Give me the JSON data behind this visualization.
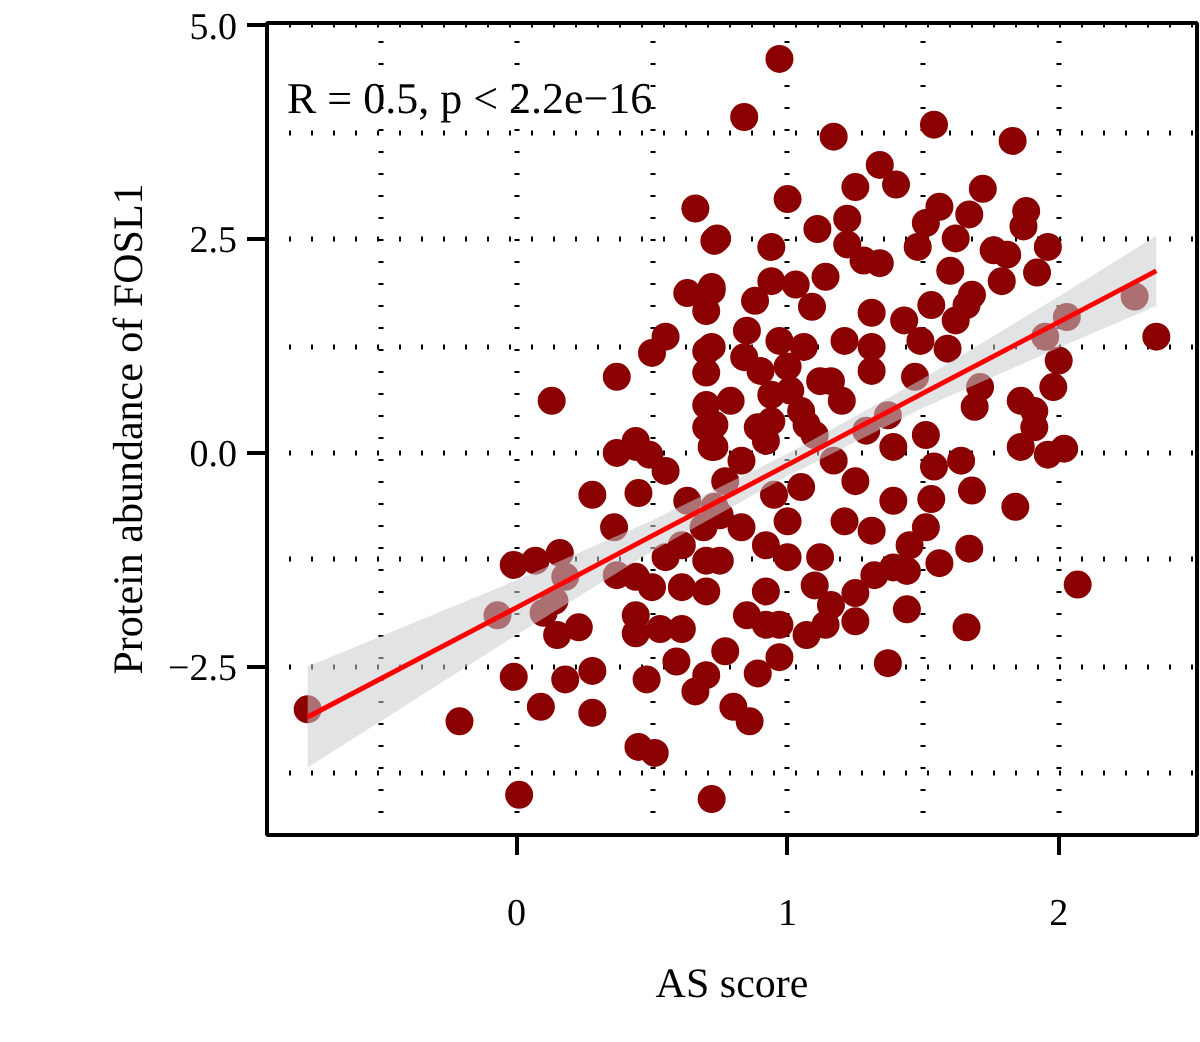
{
  "chart_data": {
    "type": "scatter",
    "xlabel": "AS score",
    "ylabel": "Protein abundance of FOSL1",
    "annotations": [
      "R = 0.5, p < 2.2e−16"
    ],
    "xlim": [
      -0.92,
      2.51
    ],
    "ylim": [
      -4.47,
      5.03
    ],
    "xticks": [
      {
        "value": -0.5,
        "label": null
      },
      0,
      {
        "value": 0.5,
        "label": null
      },
      1,
      {
        "value": 1.5,
        "label": null
      },
      2
    ],
    "yticks": [
      {
        "value": -3.75,
        "label": null
      },
      {
        "value": -2.5,
        "label": "−2.5"
      },
      {
        "value": -1.25,
        "label": null
      },
      {
        "value": 0,
        "label": "0.0"
      },
      {
        "value": 1.25,
        "label": null
      },
      {
        "value": 2.5,
        "label": "2.5"
      },
      {
        "value": 3.75,
        "label": null
      },
      {
        "value": 5,
        "label": "5.0"
      }
    ],
    "grid": true,
    "marker": "circle",
    "line_style": "dotted",
    "series": [
      {
        "color": "#8b0000",
        "x": [
          0.97,
          0.84,
          1.17,
          1.54,
          1.83,
          1.34,
          1.25,
          1.4,
          1.0,
          1.72,
          1.56,
          1.51,
          1.67,
          1.88,
          1.87,
          1.11,
          1.22,
          0.74,
          0.94,
          1.22,
          1.48,
          1.62,
          1.76,
          1.81,
          1.96,
          1.28,
          1.34,
          1.14,
          0.94,
          1.03,
          1.6,
          1.68,
          1.79,
          1.92,
          2.28,
          2.36,
          2.03,
          0.72,
          0.88,
          1.09,
          1.31,
          1.53,
          1.66,
          1.62,
          0.85,
          0.72,
          0.97,
          1.06,
          1.21,
          1.31,
          1.43,
          1.49,
          1.59,
          1.95,
          2.0,
          1.0,
          1.16,
          1.31,
          1.47,
          1.71,
          1.98,
          0.94,
          1.69,
          1.86,
          1.91,
          0.73,
          0.89,
          1.07,
          1.37,
          0.66,
          0.73,
          0.63,
          0.72,
          0.7,
          0.55,
          0.5,
          0.7,
          0.37,
          0.7,
          0.13,
          0.7,
          0.44,
          0.7,
          -0.77,
          -0.21,
          0.01,
          -0.01,
          0.07,
          0.16,
          0.18,
          -0.07,
          0.1,
          0.14,
          0.15,
          0.23,
          -0.01,
          0.09,
          0.18,
          0.28,
          0.28,
          0.28,
          0.36,
          0.37,
          0.44,
          0.49,
          0.55,
          0.45,
          0.63,
          0.37,
          0.44,
          0.5,
          0.44,
          0.44,
          0.53,
          0.61,
          0.48,
          0.59,
          0.66,
          0.45,
          0.51,
          0.72,
          0.55,
          0.61,
          0.61,
          0.7,
          0.7,
          0.69,
          0.73,
          0.73,
          0.7,
          2.07,
          1.66,
          1.37,
          1.84,
          1.68,
          1.67,
          1.53,
          1.56,
          1.51,
          1.44,
          1.25,
          1.25,
          1.14,
          1.07,
          0.97,
          0.89,
          0.8,
          0.86,
          0.77,
          0.92,
          0.85,
          0.97,
          0.92,
          1.1,
          1.16,
          1.0,
          0.92,
          1.12,
          1.32,
          1.39,
          1.44,
          1.45,
          1.39,
          1.31,
          1.21,
          1.0,
          0.75,
          1.54,
          1.64,
          1.86,
          1.96,
          2.02,
          1.91,
          1.39,
          1.25,
          1.17,
          1.05,
          0.95,
          0.83,
          0.77,
          0.72,
          1.1,
          0.92,
          1.29,
          1.51,
          0.83,
          0.75,
          0.9,
          1.01,
          0.79,
          0.84,
          1.05,
          1.12,
          0.94,
          1.2
        ],
        "values": [
          4.61,
          3.93,
          3.7,
          3.84,
          3.65,
          3.37,
          3.11,
          3.14,
          2.97,
          3.09,
          2.88,
          2.69,
          2.79,
          2.83,
          2.65,
          2.62,
          2.74,
          2.51,
          2.41,
          2.44,
          2.41,
          2.51,
          2.37,
          2.32,
          2.41,
          2.25,
          2.22,
          2.06,
          2.01,
          1.97,
          2.13,
          1.85,
          2.01,
          2.11,
          1.83,
          1.36,
          1.59,
          1.9,
          1.78,
          1.71,
          1.64,
          1.73,
          1.73,
          1.55,
          1.43,
          1.24,
          1.31,
          1.24,
          1.31,
          1.24,
          1.55,
          1.31,
          1.22,
          1.36,
          1.08,
          1.01,
          0.84,
          0.96,
          0.89,
          0.77,
          0.77,
          0.68,
          0.54,
          0.61,
          0.49,
          0.33,
          0.3,
          0.33,
          0.44,
          2.86,
          2.48,
          1.87,
          1.94,
          1.66,
          1.36,
          1.17,
          1.19,
          0.89,
          0.94,
          0.61,
          0.56,
          0.14,
          0.3,
          -3.0,
          -3.14,
          -4.0,
          -1.31,
          -1.26,
          -1.17,
          -1.45,
          -1.9,
          -1.87,
          -1.73,
          -2.13,
          -2.04,
          -2.62,
          -2.97,
          -2.65,
          -2.55,
          -3.04,
          -0.49,
          -0.87,
          0.0,
          0.07,
          -0.02,
          -0.21,
          -0.47,
          -0.56,
          -1.43,
          -1.45,
          -1.57,
          -1.9,
          -2.11,
          -2.06,
          -2.06,
          -2.65,
          -2.44,
          -2.79,
          -3.44,
          -3.51,
          -4.05,
          -1.22,
          -1.08,
          -1.57,
          -1.62,
          -1.26,
          -0.87,
          -0.63,
          0.07,
          -2.6,
          -1.54,
          -2.04,
          -2.46,
          -0.63,
          -0.44,
          -1.12,
          -0.54,
          -1.29,
          -0.87,
          -1.83,
          -1.97,
          -1.64,
          -2.01,
          -2.13,
          -2.39,
          -2.58,
          -2.97,
          -3.14,
          -2.32,
          -2.01,
          -1.9,
          -2.01,
          -1.62,
          -1.55,
          -1.78,
          -1.22,
          -1.08,
          -1.22,
          -1.43,
          -1.34,
          -1.38,
          -1.08,
          -0.56,
          -0.91,
          -0.8,
          -0.8,
          -1.26,
          -0.16,
          -0.09,
          0.07,
          -0.02,
          0.05,
          0.3,
          0.07,
          -0.33,
          -0.09,
          -0.4,
          -0.49,
          -0.09,
          -0.33,
          0.07,
          0.21,
          0.14,
          0.26,
          0.21,
          -0.87,
          -0.73,
          0.96,
          0.73,
          0.61,
          1.12,
          0.49,
          0.84,
          0.37,
          0.61
        ]
      },
      {
        "type": "line",
        "color": "#ff0000",
        "marker": "none",
        "line_style": "solid",
        "x": [
          -0.77,
          0,
          0.5,
          1,
          1.5,
          2,
          2.36
        ],
        "values": [
          -3.09,
          -1.81,
          -0.97,
          -0.14,
          0.7,
          1.53,
          2.13
        ],
        "lower": [
          -3.68,
          -2.13,
          -1.15,
          -0.27,
          0.53,
          1.23,
          1.72
        ],
        "upper": [
          -2.5,
          -1.49,
          -0.79,
          -0.01,
          0.87,
          1.83,
          2.54
        ]
      }
    ]
  }
}
